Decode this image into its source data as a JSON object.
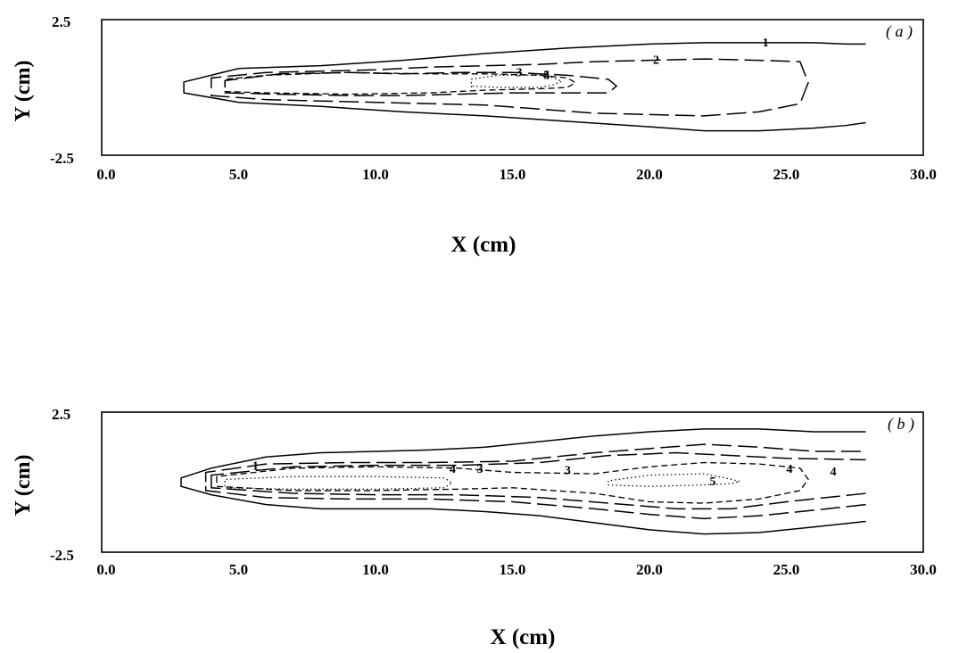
{
  "chart_data": [
    {
      "type": "contour",
      "panel_label": "( a )",
      "xlabel": "X (cm)",
      "ylabel": "Y (cm)",
      "xlim": [
        0.0,
        30.0
      ],
      "ylim": [
        -2.5,
        2.5
      ],
      "x_ticks": [
        "0.0",
        "5.0",
        "10.0",
        "15.0",
        "20.0",
        "25.0",
        "30.0"
      ],
      "y_ticks": [
        "2.5",
        "-2.5"
      ],
      "levels": [
        {
          "label": "1",
          "style": "solid",
          "x": [
            3.0,
            5.0,
            8.0,
            11.0,
            14.0,
            17.0,
            20.0,
            22.0,
            24.0,
            26.0,
            27.2,
            27.9
          ],
          "y_upper": [
            0.2,
            0.7,
            0.8,
            1.0,
            1.25,
            1.45,
            1.6,
            1.65,
            1.65,
            1.65,
            1.6,
            1.6
          ],
          "y_lower": [
            -0.2,
            -0.55,
            -0.7,
            -0.9,
            -1.05,
            -1.25,
            -1.45,
            -1.6,
            -1.6,
            -1.5,
            -1.4,
            -1.3
          ]
        },
        {
          "label": "2",
          "style": "dashed",
          "x": [
            4.0,
            6.0,
            8.0,
            10.0,
            12.0,
            14.0,
            16.0,
            18.0,
            20.0,
            22.0,
            24.0,
            25.5
          ],
          "y_upper": [
            0.35,
            0.55,
            0.6,
            0.65,
            0.75,
            0.8,
            0.85,
            0.95,
            1.0,
            1.05,
            1.0,
            0.95
          ],
          "y_lower": [
            -0.3,
            -0.45,
            -0.5,
            -0.55,
            -0.6,
            -0.65,
            -0.8,
            -0.95,
            -1.0,
            -1.05,
            -0.9,
            -0.6
          ]
        },
        {
          "label": "3",
          "style": "dashed",
          "x": [
            4.5,
            6.5,
            9.0,
            11.0,
            13.0,
            15.0,
            17.0,
            18.5
          ],
          "y_upper": [
            0.25,
            0.5,
            0.55,
            0.5,
            0.55,
            0.55,
            0.45,
            0.3
          ],
          "y_lower": [
            -0.2,
            -0.25,
            -0.3,
            -0.3,
            -0.25,
            -0.2,
            -0.2,
            -0.2
          ]
        },
        {
          "label": "4",
          "style": "dash-dot",
          "x": [
            4.5,
            6.0,
            9.0,
            12.0,
            14.0,
            16.0,
            17.0
          ],
          "y_upper": [
            0.3,
            0.45,
            0.55,
            0.5,
            0.5,
            0.45,
            0.35
          ],
          "y_lower": [
            -0.15,
            -0.2,
            -0.25,
            -0.2,
            -0.1,
            -0.05,
            0.0
          ]
        },
        {
          "label": "5",
          "style": "dotted",
          "x": [
            13.5,
            14.5,
            16.0,
            16.5
          ],
          "y_upper": [
            0.3,
            0.45,
            0.45,
            0.35
          ],
          "y_lower": [
            0.05,
            0.0,
            0.0,
            0.1
          ]
        }
      ]
    },
    {
      "type": "contour",
      "panel_label": "( b )",
      "xlabel": "X (cm)",
      "ylabel": "Y (cm)",
      "xlim": [
        0.0,
        30.0
      ],
      "ylim": [
        -2.5,
        2.5
      ],
      "x_ticks": [
        "0.0",
        "5.0",
        "10.0",
        "15.0",
        "20.0",
        "25.0",
        "30.0"
      ],
      "y_ticks": [
        "2.5",
        "-2.5"
      ],
      "levels": [
        {
          "label": "1",
          "style": "solid",
          "x": [
            2.9,
            4.0,
            6.0,
            8.0,
            10.0,
            12.0,
            14.0,
            16.0,
            18.0,
            20.0,
            22.0,
            24.0,
            26.0,
            27.9
          ],
          "y_upper": [
            0.15,
            0.5,
            0.9,
            1.05,
            1.1,
            1.15,
            1.25,
            1.45,
            1.65,
            1.8,
            1.9,
            1.9,
            1.8,
            1.8
          ],
          "y_lower": [
            -0.15,
            -0.45,
            -0.8,
            -0.95,
            -0.95,
            -0.95,
            -1.05,
            -1.2,
            -1.45,
            -1.7,
            -1.85,
            -1.8,
            -1.6,
            -1.4
          ]
        },
        {
          "label": "2",
          "style": "dashed",
          "x": [
            3.8,
            6.0,
            9.0,
            12.0,
            15.0,
            18.0,
            20.0,
            22.0,
            24.0,
            26.0,
            27.9
          ],
          "y_upper": [
            0.35,
            0.65,
            0.7,
            0.7,
            0.75,
            1.05,
            1.2,
            1.35,
            1.25,
            1.1,
            1.1
          ],
          "y_lower": [
            -0.3,
            -0.55,
            -0.6,
            -0.6,
            -0.7,
            -0.95,
            -1.15,
            -1.3,
            -1.2,
            -1.0,
            -0.8
          ]
        },
        {
          "label": "3",
          "style": "dashed",
          "x": [
            4.0,
            7.0,
            10.0,
            13.0,
            16.0,
            18.5,
            21.0,
            23.0,
            25.0,
            27.9
          ],
          "y_upper": [
            0.25,
            0.55,
            0.6,
            0.6,
            0.7,
            0.95,
            1.05,
            0.95,
            0.85,
            0.8
          ],
          "y_lower": [
            -0.2,
            -0.4,
            -0.45,
            -0.45,
            -0.55,
            -0.75,
            -0.95,
            -0.95,
            -0.7,
            -0.4
          ]
        },
        {
          "label": "4",
          "style": "dash-dot",
          "x": [
            4.2,
            7.0,
            10.0,
            13.0,
            15.0,
            18.0,
            20.0,
            22.0,
            24.0,
            25.5
          ],
          "y_upper": [
            0.2,
            0.5,
            0.55,
            0.5,
            0.35,
            0.3,
            0.55,
            0.7,
            0.65,
            0.5
          ],
          "y_lower": [
            -0.15,
            -0.3,
            -0.3,
            -0.25,
            -0.2,
            -0.4,
            -0.7,
            -0.75,
            -0.6,
            -0.3
          ]
        },
        {
          "label": "5",
          "style": "dotted",
          "x": [
            4.5,
            7.0,
            10.0,
            12.5
          ],
          "y_upper": [
            0.1,
            0.2,
            0.2,
            0.15
          ],
          "y_lower": [
            -0.2,
            -0.25,
            -0.25,
            -0.2
          ]
        },
        {
          "label": "5",
          "style": "dotted",
          "x": [
            18.5,
            20.0,
            22.0,
            23.0
          ],
          "y_upper": [
            0.05,
            0.25,
            0.3,
            0.1
          ],
          "y_lower": [
            -0.1,
            -0.15,
            -0.1,
            -0.05
          ]
        }
      ],
      "contour_labels": [
        {
          "text": "1",
          "x": 5.5,
          "y": 0.6
        },
        {
          "text": "4",
          "x": 12.7,
          "y": 0.5
        },
        {
          "text": "3",
          "x": 13.7,
          "y": 0.5
        },
        {
          "text": "3",
          "x": 16.9,
          "y": 0.45
        },
        {
          "text": "4",
          "x": 25.0,
          "y": 0.5
        },
        {
          "text": "4",
          "x": 26.6,
          "y": 0.4
        },
        {
          "text": "5",
          "x": 22.2,
          "y": 0.05
        }
      ]
    }
  ]
}
